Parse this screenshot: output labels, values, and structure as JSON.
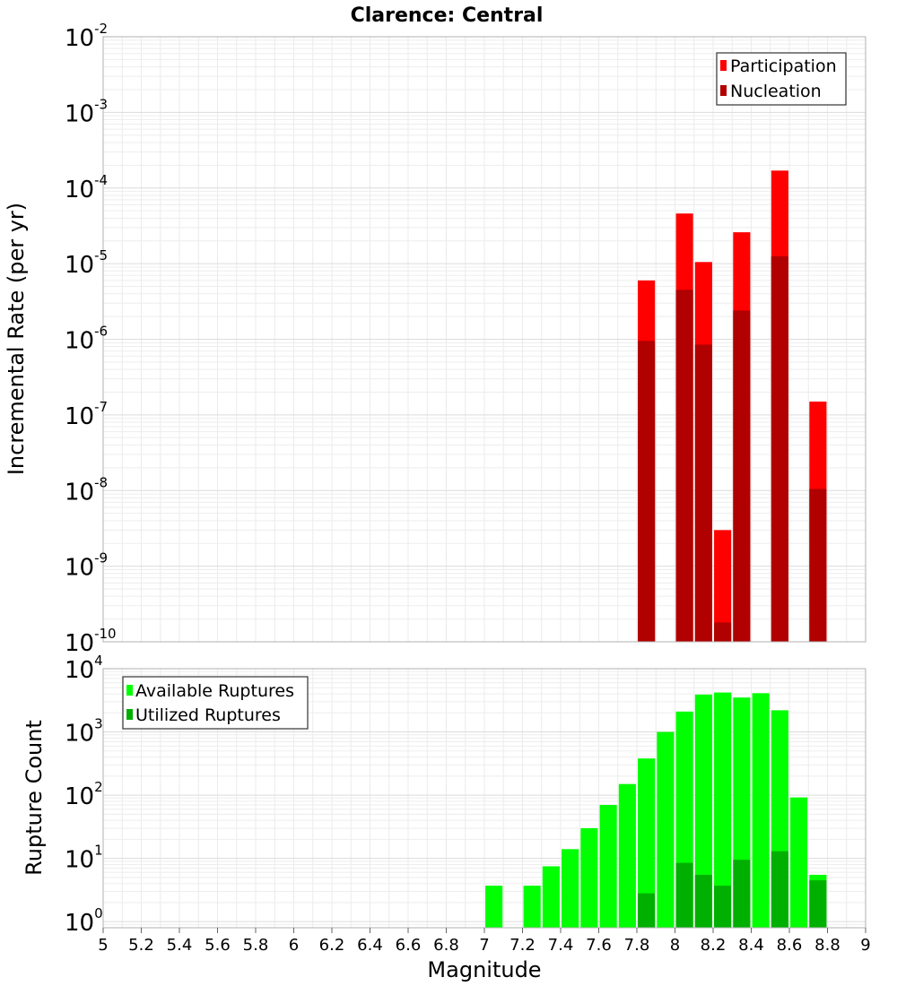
{
  "chart_data": [
    {
      "type": "bar",
      "title": "Clarence: Central",
      "xlabel": "",
      "ylabel": "Incremental Rate (per yr)",
      "yscale": "log",
      "ylim": [
        1e-10,
        0.01
      ],
      "xlim": [
        5,
        9
      ],
      "ytick_exponents": [
        -2,
        -3,
        -4,
        -5,
        -6,
        -7,
        -8,
        -9,
        -10
      ],
      "legend_position": "top-right",
      "grid": true,
      "colors": {
        "Participation": "#ff0000",
        "Nucleation": "#b00000"
      },
      "series": [
        {
          "name": "Participation",
          "x": [
            7.85,
            8.05,
            8.15,
            8.25,
            8.35,
            8.55,
            8.75
          ],
          "values": [
            6e-06,
            4.6e-05,
            1.05e-05,
            3e-09,
            2.6e-05,
            0.00017,
            1.5e-07
          ]
        },
        {
          "name": "Nucleation",
          "x": [
            7.85,
            8.05,
            8.15,
            8.25,
            8.35,
            8.55,
            8.75
          ],
          "values": [
            9.5e-07,
            4.5e-06,
            8.5e-07,
            1.8e-10,
            2.4e-06,
            1.25e-05,
            1.05e-08
          ]
        }
      ]
    },
    {
      "type": "bar",
      "title": "",
      "xlabel": "Magnitude",
      "ylabel": "Rupture Count",
      "yscale": "log",
      "ylim": [
        0.8,
        10000
      ],
      "xlim": [
        5,
        9
      ],
      "ytick_exponents": [
        4,
        3,
        2,
        1,
        0
      ],
      "xticks": [
        "5",
        "5.2",
        "5.4",
        "5.6",
        "5.8",
        "6",
        "6.2",
        "6.4",
        "6.6",
        "6.8",
        "7",
        "7.2",
        "7.4",
        "7.6",
        "7.8",
        "8",
        "8.2",
        "8.4",
        "8.6",
        "8.8",
        "9"
      ],
      "legend_position": "top-left",
      "grid": true,
      "colors": {
        "Available Ruptures": "#00ff00",
        "Utilized Ruptures": "#00b000"
      },
      "series": [
        {
          "name": "Available Ruptures",
          "x": [
            7.05,
            7.25,
            7.35,
            7.45,
            7.55,
            7.65,
            7.75,
            7.85,
            7.95,
            8.05,
            8.15,
            8.25,
            8.35,
            8.45,
            8.55,
            8.65,
            8.75
          ],
          "values": [
            3.7,
            3.7,
            7.5,
            14,
            30,
            70,
            150,
            380,
            1000,
            2100,
            3900,
            4200,
            3500,
            4100,
            2200,
            92,
            5.5
          ]
        },
        {
          "name": "Utilized Ruptures",
          "x": [
            7.85,
            8.05,
            8.15,
            8.25,
            8.35,
            8.55,
            8.75
          ],
          "values": [
            2.8,
            8.5,
            5.5,
            3.7,
            9.5,
            13,
            4.5
          ]
        }
      ]
    }
  ]
}
